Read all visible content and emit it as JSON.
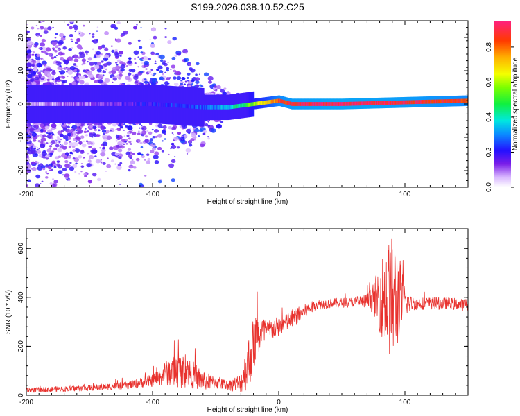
{
  "title": "S199.2026.038.10.52.C25",
  "colors": {
    "snr_line": "#e8322e",
    "axis": "#000000"
  },
  "chart_data": [
    {
      "type": "heatmap",
      "name": "spectrogram",
      "xlabel": "Height of straight line (km)",
      "ylabel": "Frequency (Hz)",
      "xlim": [
        -200,
        150
      ],
      "ylim": [
        -25,
        25
      ],
      "x_ticks": [
        -200,
        -100,
        0,
        100
      ],
      "x_tick_labels": [
        "-200",
        "-100",
        "0",
        "100"
      ],
      "y_ticks": [
        -20,
        -10,
        0,
        10,
        20
      ],
      "y_tick_labels": [
        "-20",
        "-10",
        "0",
        "10",
        "20"
      ],
      "colorbar": {
        "label": "Normalized spectral amplitude",
        "range": [
          0,
          0.95
        ],
        "ticks": [
          0,
          0.2,
          0.4,
          0.6,
          0.8
        ],
        "tick_labels": [
          "0.0",
          "0.2",
          "0.4",
          "0.6",
          "0.8"
        ]
      },
      "ridge": {
        "description_points_x": [
          -200,
          -150,
          -100,
          -60,
          -40,
          -30,
          -20,
          -10,
          0,
          10,
          50,
          100,
          150
        ],
        "frequency_hz": [
          0,
          0,
          0,
          -1,
          -1,
          -0.5,
          0,
          0.5,
          1,
          0,
          0,
          0.5,
          1
        ],
        "amplitude": [
          0.05,
          0.1,
          0.2,
          0.25,
          0.35,
          0.45,
          0.6,
          0.7,
          0.85,
          0.9,
          0.92,
          0.9,
          0.85
        ]
      }
    },
    {
      "type": "line",
      "name": "snr",
      "xlabel": "Height of straight line (km)",
      "ylabel": "SNR (10 * v/v)",
      "xlim": [
        -200,
        150
      ],
      "ylim": [
        0,
        680
      ],
      "x_ticks": [
        -200,
        -100,
        0,
        100
      ],
      "x_tick_labels": [
        "-200",
        "-100",
        "0",
        "100"
      ],
      "y_ticks": [
        0,
        200,
        400,
        600
      ],
      "y_tick_labels": [
        "0",
        "200",
        "400",
        "600"
      ],
      "envelope": {
        "x": [
          -200,
          -150,
          -120,
          -100,
          -90,
          -80,
          -70,
          -60,
          -50,
          -40,
          -30,
          -25,
          -20,
          -18,
          -10,
          0,
          10,
          20,
          30,
          40,
          60,
          70,
          75,
          80,
          85,
          90,
          95,
          100,
          105,
          110,
          120,
          130,
          150
        ],
        "mean": [
          20,
          30,
          40,
          60,
          90,
          100,
          90,
          60,
          50,
          40,
          50,
          120,
          200,
          240,
          260,
          280,
          310,
          340,
          370,
          375,
          380,
          385,
          395,
          400,
          400,
          395,
          400,
          380,
          375,
          375,
          375,
          375,
          370
        ],
        "amp": [
          10,
          12,
          15,
          25,
          50,
          70,
          60,
          40,
          25,
          20,
          40,
          100,
          120,
          100,
          50,
          40,
          40,
          30,
          20,
          20,
          20,
          30,
          60,
          140,
          220,
          260,
          200,
          60,
          30,
          25,
          25,
          25,
          25
        ]
      }
    }
  ]
}
